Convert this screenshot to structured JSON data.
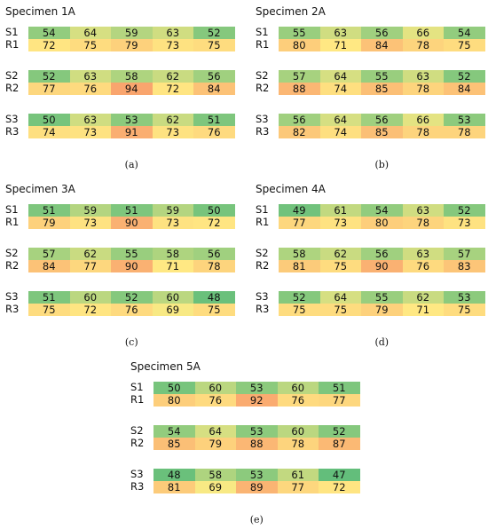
{
  "chart_data": [
    {
      "type": "heatmap",
      "title": "Specimen 1A",
      "caption": "(a)",
      "groups": [
        {
          "s_label": "S1",
          "r_label": "R1",
          "s_values": [
            54,
            64,
            59,
            63,
            52
          ],
          "r_values": [
            72,
            75,
            79,
            73,
            75
          ]
        },
        {
          "s_label": "S2",
          "r_label": "R2",
          "s_values": [
            52,
            63,
            58,
            62,
            56
          ],
          "r_values": [
            77,
            76,
            94,
            72,
            84
          ]
        },
        {
          "s_label": "S3",
          "r_label": "R3",
          "s_values": [
            50,
            63,
            53,
            62,
            51
          ],
          "r_values": [
            74,
            73,
            91,
            73,
            76
          ]
        }
      ]
    },
    {
      "type": "heatmap",
      "title": "Specimen 2A",
      "caption": "(b)",
      "groups": [
        {
          "s_label": "S1",
          "r_label": "R1",
          "s_values": [
            55,
            63,
            56,
            66,
            54
          ],
          "r_values": [
            80,
            71,
            84,
            78,
            75
          ]
        },
        {
          "s_label": "S2",
          "r_label": "R2",
          "s_values": [
            57,
            64,
            55,
            63,
            52
          ],
          "r_values": [
            88,
            74,
            85,
            78,
            84
          ]
        },
        {
          "s_label": "S3",
          "r_label": "R3",
          "s_values": [
            56,
            64,
            56,
            66,
            53
          ],
          "r_values": [
            82,
            74,
            85,
            78,
            78
          ]
        }
      ]
    },
    {
      "type": "heatmap",
      "title": "Specimen 3A",
      "caption": "(c)",
      "groups": [
        {
          "s_label": "S1",
          "r_label": "R1",
          "s_values": [
            51,
            59,
            51,
            59,
            50
          ],
          "r_values": [
            79,
            73,
            90,
            73,
            72
          ]
        },
        {
          "s_label": "S2",
          "r_label": "R2",
          "s_values": [
            57,
            62,
            55,
            58,
            56
          ],
          "r_values": [
            84,
            77,
            90,
            71,
            78
          ]
        },
        {
          "s_label": "S3",
          "r_label": "R3",
          "s_values": [
            51,
            60,
            52,
            60,
            48
          ],
          "r_values": [
            75,
            72,
            76,
            69,
            75
          ]
        }
      ]
    },
    {
      "type": "heatmap",
      "title": "Specimen 4A",
      "caption": "(d)",
      "groups": [
        {
          "s_label": "S1",
          "r_label": "R1",
          "s_values": [
            49,
            61,
            54,
            63,
            52
          ],
          "r_values": [
            77,
            73,
            80,
            78,
            73
          ]
        },
        {
          "s_label": "S2",
          "r_label": "R2",
          "s_values": [
            58,
            62,
            56,
            63,
            57
          ],
          "r_values": [
            81,
            75,
            90,
            76,
            83
          ]
        },
        {
          "s_label": "S3",
          "r_label": "R3",
          "s_values": [
            52,
            64,
            55,
            62,
            53
          ],
          "r_values": [
            75,
            75,
            79,
            71,
            75
          ]
        }
      ]
    },
    {
      "type": "heatmap",
      "title": "Specimen 5A",
      "caption": "(e)",
      "groups": [
        {
          "s_label": "S1",
          "r_label": "R1",
          "s_values": [
            50,
            60,
            53,
            60,
            51
          ],
          "r_values": [
            80,
            76,
            92,
            76,
            77
          ]
        },
        {
          "s_label": "S2",
          "r_label": "R2",
          "s_values": [
            54,
            64,
            53,
            60,
            52
          ],
          "r_values": [
            85,
            79,
            88,
            78,
            87
          ]
        },
        {
          "s_label": "S3",
          "r_label": "R3",
          "s_values": [
            48,
            58,
            53,
            61,
            47
          ],
          "r_values": [
            81,
            69,
            89,
            77,
            72
          ]
        }
      ]
    }
  ]
}
